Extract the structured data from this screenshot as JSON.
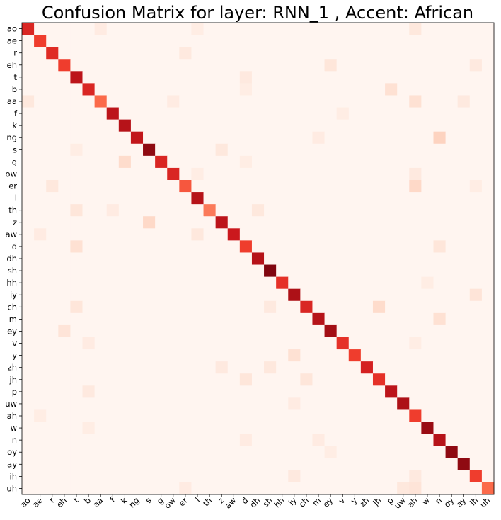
{
  "chart_data": {
    "type": "heatmap",
    "title": "Confusion Matrix for layer: RNN_1 , Accent: African",
    "xlabel": "",
    "ylabel": "",
    "labels": [
      "ao",
      "ae",
      "r",
      "eh",
      "t",
      "b",
      "aa",
      "f",
      "k",
      "ng",
      "s",
      "g",
      "ow",
      "er",
      "l",
      "th",
      "z",
      "aw",
      "d",
      "dh",
      "sh",
      "hh",
      "iy",
      "ch",
      "m",
      "ey",
      "v",
      "y",
      "zh",
      "jh",
      "p",
      "uw",
      "ah",
      "w",
      "n",
      "oy",
      "ay",
      "ih",
      "uh"
    ],
    "diagonal": [
      0.7,
      0.62,
      0.68,
      0.62,
      0.8,
      0.7,
      0.5,
      0.8,
      0.82,
      0.78,
      0.92,
      0.7,
      0.7,
      0.55,
      0.82,
      0.45,
      0.8,
      0.75,
      0.62,
      0.82,
      0.95,
      0.66,
      0.85,
      0.7,
      0.82,
      0.88,
      0.66,
      0.62,
      0.72,
      0.66,
      0.8,
      0.85,
      0.62,
      0.9,
      0.82,
      0.92,
      0.92,
      0.62,
      0.5
    ],
    "off_diagonal": [
      {
        "row": "ao",
        "col": "ah",
        "value": 0.08
      },
      {
        "row": "ao",
        "col": "aa",
        "value": 0.06
      },
      {
        "row": "ao",
        "col": "l",
        "value": 0.05
      },
      {
        "row": "r",
        "col": "er",
        "value": 0.07
      },
      {
        "row": "eh",
        "col": "ey",
        "value": 0.09
      },
      {
        "row": "eh",
        "col": "ih",
        "value": 0.07
      },
      {
        "row": "t",
        "col": "d",
        "value": 0.07
      },
      {
        "row": "b",
        "col": "p",
        "value": 0.12
      },
      {
        "row": "b",
        "col": "d",
        "value": 0.05
      },
      {
        "row": "aa",
        "col": "ah",
        "value": 0.12
      },
      {
        "row": "aa",
        "col": "ao",
        "value": 0.08
      },
      {
        "row": "aa",
        "col": "ow",
        "value": 0.06
      },
      {
        "row": "aa",
        "col": "ay",
        "value": 0.07
      },
      {
        "row": "f",
        "col": "v",
        "value": 0.05
      },
      {
        "row": "ng",
        "col": "n",
        "value": 0.17
      },
      {
        "row": "ng",
        "col": "m",
        "value": 0.06
      },
      {
        "row": "s",
        "col": "z",
        "value": 0.08
      },
      {
        "row": "s",
        "col": "t",
        "value": 0.05
      },
      {
        "row": "g",
        "col": "k",
        "value": 0.14
      },
      {
        "row": "g",
        "col": "d",
        "value": 0.05
      },
      {
        "row": "ow",
        "col": "ah",
        "value": 0.07
      },
      {
        "row": "ow",
        "col": "l",
        "value": 0.05
      },
      {
        "row": "er",
        "col": "ah",
        "value": 0.15
      },
      {
        "row": "er",
        "col": "r",
        "value": 0.08
      },
      {
        "row": "er",
        "col": "ih",
        "value": 0.05
      },
      {
        "row": "th",
        "col": "t",
        "value": 0.09
      },
      {
        "row": "th",
        "col": "dh",
        "value": 0.08
      },
      {
        "row": "th",
        "col": "f",
        "value": 0.06
      },
      {
        "row": "z",
        "col": "s",
        "value": 0.15
      },
      {
        "row": "aw",
        "col": "ae",
        "value": 0.06
      },
      {
        "row": "aw",
        "col": "l",
        "value": 0.08
      },
      {
        "row": "d",
        "col": "t",
        "value": 0.12
      },
      {
        "row": "d",
        "col": "n",
        "value": 0.09
      },
      {
        "row": "hh",
        "col": "w",
        "value": 0.05
      },
      {
        "row": "iy",
        "col": "ih",
        "value": 0.1
      },
      {
        "row": "ch",
        "col": "jh",
        "value": 0.14
      },
      {
        "row": "ch",
        "col": "t",
        "value": 0.09
      },
      {
        "row": "ch",
        "col": "sh",
        "value": 0.07
      },
      {
        "row": "m",
        "col": "n",
        "value": 0.12
      },
      {
        "row": "ey",
        "col": "eh",
        "value": 0.1
      },
      {
        "row": "v",
        "col": "b",
        "value": 0.06
      },
      {
        "row": "v",
        "col": "ah",
        "value": 0.05
      },
      {
        "row": "y",
        "col": "iy",
        "value": 0.12
      },
      {
        "row": "zh",
        "col": "sh",
        "value": 0.08
      },
      {
        "row": "zh",
        "col": "z",
        "value": 0.07
      },
      {
        "row": "jh",
        "col": "d",
        "value": 0.09
      },
      {
        "row": "jh",
        "col": "ch",
        "value": 0.09
      },
      {
        "row": "p",
        "col": "b",
        "value": 0.07
      },
      {
        "row": "uw",
        "col": "iy",
        "value": 0.06
      },
      {
        "row": "ah",
        "col": "ae",
        "value": 0.05
      },
      {
        "row": "w",
        "col": "b",
        "value": 0.05
      },
      {
        "row": "n",
        "col": "m",
        "value": 0.06
      },
      {
        "row": "n",
        "col": "d",
        "value": 0.06
      },
      {
        "row": "oy",
        "col": "ey",
        "value": 0.05
      },
      {
        "row": "ih",
        "col": "ah",
        "value": 0.07
      },
      {
        "row": "ih",
        "col": "iy",
        "value": 0.07
      },
      {
        "row": "uh",
        "col": "ah",
        "value": 0.1
      },
      {
        "row": "uh",
        "col": "uw",
        "value": 0.08
      },
      {
        "row": "uh",
        "col": "er",
        "value": 0.06
      }
    ],
    "colormap": "Reds",
    "colorbar": false,
    "grid": false
  }
}
